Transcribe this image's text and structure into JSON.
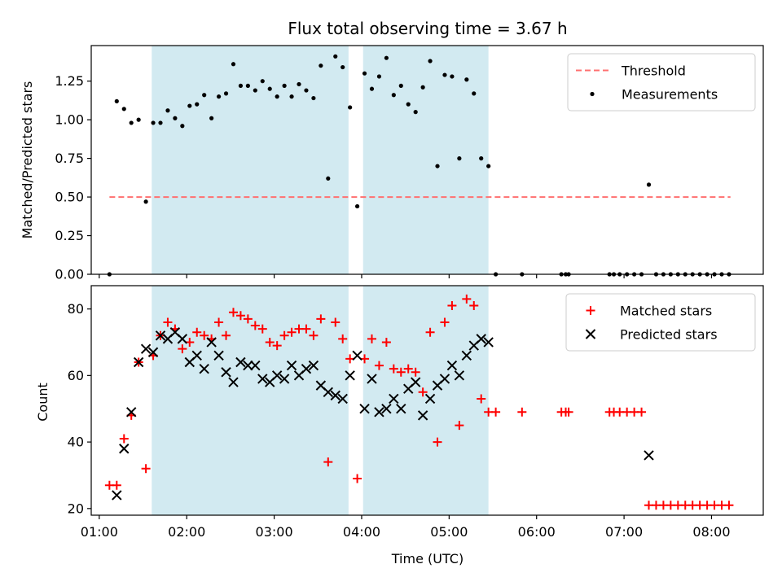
{
  "chart_data": {
    "title": "Flux total observing time = 3.67 h",
    "xlabel": "Time (UTC)",
    "x_ticks": [
      "01:00",
      "02:00",
      "03:00",
      "04:00",
      "05:00",
      "06:00",
      "07:00",
      "08:00"
    ],
    "shaded_regions": [
      [
        "01:36",
        "03:51"
      ],
      [
        "04:01",
        "05:27"
      ]
    ],
    "shade_color": "#add8e6",
    "panels": [
      {
        "type": "scatter",
        "ylabel": "Matched/Predicted stars",
        "ylim": [
          0,
          1.48
        ],
        "y_ticks": [
          "0.00",
          "0.25",
          "0.50",
          "0.75",
          "1.00",
          "1.25"
        ],
        "y_tick_values": [
          0,
          0.25,
          0.5,
          0.75,
          1.0,
          1.25
        ],
        "legend_position": "upper-right",
        "threshold": {
          "name": "Threshold",
          "value": 0.5,
          "x_range": [
            "01:07",
            "08:13"
          ],
          "color": "#ff7070"
        },
        "series": [
          {
            "name": "Measurements",
            "marker": "dot",
            "color": "#000000",
            "points": [
              [
                "01:07",
                0.0
              ],
              [
                "01:12",
                1.12
              ],
              [
                "01:17",
                1.07
              ],
              [
                "01:22",
                0.98
              ],
              [
                "01:27",
                1.0
              ],
              [
                "01:32",
                0.47
              ],
              [
                "01:37",
                0.98
              ],
              [
                "01:42",
                0.98
              ],
              [
                "01:47",
                1.06
              ],
              [
                "01:52",
                1.01
              ],
              [
                "01:57",
                0.96
              ],
              [
                "02:02",
                1.09
              ],
              [
                "02:07",
                1.1
              ],
              [
                "02:12",
                1.16
              ],
              [
                "02:17",
                1.01
              ],
              [
                "02:22",
                1.15
              ],
              [
                "02:27",
                1.17
              ],
              [
                "02:32",
                1.36
              ],
              [
                "02:37",
                1.22
              ],
              [
                "02:42",
                1.22
              ],
              [
                "02:47",
                1.19
              ],
              [
                "02:52",
                1.25
              ],
              [
                "02:57",
                1.2
              ],
              [
                "03:02",
                1.15
              ],
              [
                "03:07",
                1.22
              ],
              [
                "03:12",
                1.15
              ],
              [
                "03:17",
                1.23
              ],
              [
                "03:22",
                1.19
              ],
              [
                "03:27",
                1.14
              ],
              [
                "03:32",
                1.35
              ],
              [
                "03:37",
                0.62
              ],
              [
                "03:42",
                1.41
              ],
              [
                "03:47",
                1.34
              ],
              [
                "03:52",
                1.08
              ],
              [
                "03:57",
                0.44
              ],
              [
                "04:02",
                1.3
              ],
              [
                "04:07",
                1.2
              ],
              [
                "04:12",
                1.28
              ],
              [
                "04:17",
                1.4
              ],
              [
                "04:22",
                1.16
              ],
              [
                "04:27",
                1.22
              ],
              [
                "04:32",
                1.1
              ],
              [
                "04:37",
                1.05
              ],
              [
                "04:42",
                1.21
              ],
              [
                "04:47",
                1.38
              ],
              [
                "04:52",
                0.7
              ],
              [
                "04:57",
                1.29
              ],
              [
                "05:02",
                1.28
              ],
              [
                "05:07",
                0.75
              ],
              [
                "05:12",
                1.26
              ],
              [
                "05:17",
                1.17
              ],
              [
                "05:22",
                0.75
              ],
              [
                "05:27",
                0.7
              ],
              [
                "05:32",
                0.0
              ],
              [
                "05:50",
                0.0
              ],
              [
                "06:17",
                0.0
              ],
              [
                "06:20",
                0.0
              ],
              [
                "06:22",
                0.0
              ],
              [
                "06:50",
                0.0
              ],
              [
                "06:53",
                0.0
              ],
              [
                "06:57",
                0.0
              ],
              [
                "07:02",
                0.0
              ],
              [
                "07:07",
                0.0
              ],
              [
                "07:12",
                0.0
              ],
              [
                "07:17",
                0.58
              ],
              [
                "07:22",
                0.0
              ],
              [
                "07:27",
                0.0
              ],
              [
                "07:32",
                0.0
              ],
              [
                "07:37",
                0.0
              ],
              [
                "07:42",
                0.0
              ],
              [
                "07:47",
                0.0
              ],
              [
                "07:52",
                0.0
              ],
              [
                "07:57",
                0.0
              ],
              [
                "08:02",
                0.0
              ],
              [
                "08:07",
                0.0
              ],
              [
                "08:12",
                0.0
              ]
            ]
          }
        ]
      },
      {
        "type": "scatter",
        "ylabel": "Count",
        "ylim": [
          18,
          87
        ],
        "y_ticks": [
          "20",
          "40",
          "60",
          "80"
        ],
        "y_tick_values": [
          20,
          40,
          60,
          80
        ],
        "legend_position": "upper-right",
        "series": [
          {
            "name": "Matched stars",
            "marker": "plus",
            "color": "#ff0000",
            "points": [
              [
                "01:07",
                27
              ],
              [
                "01:12",
                27
              ],
              [
                "01:17",
                41
              ],
              [
                "01:22",
                48
              ],
              [
                "01:27",
                64
              ],
              [
                "01:32",
                32
              ],
              [
                "01:37",
                66
              ],
              [
                "01:42",
                72
              ],
              [
                "01:47",
                76
              ],
              [
                "01:52",
                74
              ],
              [
                "01:57",
                68
              ],
              [
                "02:02",
                70
              ],
              [
                "02:07",
                73
              ],
              [
                "02:12",
                72
              ],
              [
                "02:17",
                71
              ],
              [
                "02:22",
                76
              ],
              [
                "02:27",
                72
              ],
              [
                "02:32",
                79
              ],
              [
                "02:37",
                78
              ],
              [
                "02:42",
                77
              ],
              [
                "02:47",
                75
              ],
              [
                "02:52",
                74
              ],
              [
                "02:57",
                70
              ],
              [
                "03:02",
                69
              ],
              [
                "03:07",
                72
              ],
              [
                "03:12",
                73
              ],
              [
                "03:17",
                74
              ],
              [
                "03:22",
                74
              ],
              [
                "03:27",
                72
              ],
              [
                "03:32",
                77
              ],
              [
                "03:37",
                34
              ],
              [
                "03:42",
                76
              ],
              [
                "03:47",
                71
              ],
              [
                "03:52",
                65
              ],
              [
                "03:57",
                29
              ],
              [
                "04:02",
                65
              ],
              [
                "04:07",
                71
              ],
              [
                "04:12",
                63
              ],
              [
                "04:17",
                70
              ],
              [
                "04:22",
                62
              ],
              [
                "04:27",
                61
              ],
              [
                "04:32",
                62
              ],
              [
                "04:37",
                61
              ],
              [
                "04:42",
                55
              ],
              [
                "04:47",
                73
              ],
              [
                "04:52",
                40
              ],
              [
                "04:57",
                76
              ],
              [
                "05:02",
                81
              ],
              [
                "05:07",
                45
              ],
              [
                "05:12",
                83
              ],
              [
                "05:17",
                81
              ],
              [
                "05:22",
                53
              ],
              [
                "05:27",
                49
              ],
              [
                "05:32",
                49
              ],
              [
                "05:50",
                49
              ],
              [
                "06:17",
                49
              ],
              [
                "06:20",
                49
              ],
              [
                "06:22",
                49
              ],
              [
                "06:50",
                49
              ],
              [
                "06:53",
                49
              ],
              [
                "06:57",
                49
              ],
              [
                "07:02",
                49
              ],
              [
                "07:07",
                49
              ],
              [
                "07:12",
                49
              ],
              [
                "07:17",
                21
              ],
              [
                "07:22",
                21
              ],
              [
                "07:27",
                21
              ],
              [
                "07:32",
                21
              ],
              [
                "07:37",
                21
              ],
              [
                "07:42",
                21
              ],
              [
                "07:47",
                21
              ],
              [
                "07:52",
                21
              ],
              [
                "07:57",
                21
              ],
              [
                "08:02",
                21
              ],
              [
                "08:07",
                21
              ],
              [
                "08:12",
                21
              ]
            ]
          },
          {
            "name": "Predicted stars",
            "marker": "x",
            "color": "#000000",
            "points": [
              [
                "01:12",
                24
              ],
              [
                "01:17",
                38
              ],
              [
                "01:22",
                49
              ],
              [
                "01:27",
                64
              ],
              [
                "01:32",
                68
              ],
              [
                "01:37",
                67
              ],
              [
                "01:42",
                72
              ],
              [
                "01:47",
                71
              ],
              [
                "01:52",
                73
              ],
              [
                "01:57",
                71
              ],
              [
                "02:02",
                64
              ],
              [
                "02:07",
                66
              ],
              [
                "02:12",
                62
              ],
              [
                "02:17",
                70
              ],
              [
                "02:22",
                66
              ],
              [
                "02:27",
                61
              ],
              [
                "02:32",
                58
              ],
              [
                "02:37",
                64
              ],
              [
                "02:42",
                63
              ],
              [
                "02:47",
                63
              ],
              [
                "02:52",
                59
              ],
              [
                "02:57",
                58
              ],
              [
                "03:02",
                60
              ],
              [
                "03:07",
                59
              ],
              [
                "03:12",
                63
              ],
              [
                "03:17",
                60
              ],
              [
                "03:22",
                62
              ],
              [
                "03:27",
                63
              ],
              [
                "03:32",
                57
              ],
              [
                "03:37",
                55
              ],
              [
                "03:42",
                54
              ],
              [
                "03:47",
                53
              ],
              [
                "03:52",
                60
              ],
              [
                "03:57",
                66
              ],
              [
                "04:02",
                50
              ],
              [
                "04:07",
                59
              ],
              [
                "04:12",
                49
              ],
              [
                "04:17",
                50
              ],
              [
                "04:22",
                53
              ],
              [
                "04:27",
                50
              ],
              [
                "04:32",
                56
              ],
              [
                "04:37",
                58
              ],
              [
                "04:42",
                48
              ],
              [
                "04:47",
                53
              ],
              [
                "04:52",
                57
              ],
              [
                "04:57",
                59
              ],
              [
                "05:02",
                63
              ],
              [
                "05:07",
                60
              ],
              [
                "05:12",
                66
              ],
              [
                "05:17",
                69
              ],
              [
                "05:22",
                71
              ],
              [
                "05:27",
                70
              ],
              [
                "07:17",
                36
              ]
            ]
          }
        ]
      }
    ]
  }
}
